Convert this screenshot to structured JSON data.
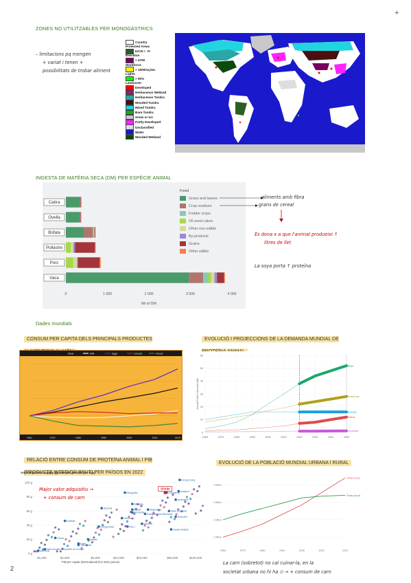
{
  "page": {
    "number": "2",
    "corner_mark": "+"
  },
  "section1": {
    "heading": "ZONES NO UTILITZABLES PER MONOGÀSTRICS",
    "notes": [
      "– limitacions pq mengen",
      "+ variat i tenen +",
      "possibilitats de trobar aliment"
    ],
    "legend": {
      "items": [
        {
          "label": "Country",
          "color": "#ffffff",
          "kind": "swatch"
        },
        {
          "label": "Protected Areas",
          "kind": "head"
        },
        {
          "label": "IUCN I - IV",
          "color": "#2a5e22",
          "kind": "swatch"
        },
        {
          "label": "Elevation",
          "kind": "head"
        },
        {
          "label": "> 4750",
          "color": "#7a0060",
          "kind": "swatch"
        },
        {
          "label": "Workforce",
          "kind": "head"
        },
        {
          "label": "> 1500/sq.km.",
          "color": "#f4f200",
          "kind": "swatch"
        },
        {
          "label": "Lights",
          "kind": "head"
        },
        {
          "label": "> 90%",
          "color": "#00ff00",
          "kind": "swatch"
        },
        {
          "label": "Landcover",
          "kind": "head"
        },
        {
          "label": "Developed",
          "color": "#ff0000",
          "kind": "swatch"
        },
        {
          "label": "Herbaceous Wetland",
          "color": "#9c1a6a",
          "kind": "swatch"
        },
        {
          "label": "Herbaceous Tundra",
          "color": "#2aa6a6",
          "kind": "swatch"
        },
        {
          "label": "Wooded Tundra",
          "color": "#4a1010",
          "kind": "swatch"
        },
        {
          "label": "Mixed Tundra",
          "color": "#22d4e0",
          "kind": "swatch"
        },
        {
          "label": "Bare Tundra",
          "color": "#1aa81a",
          "kind": "swatch"
        },
        {
          "label": "Snow or Ice",
          "color": "#c8c8c8",
          "kind": "swatch"
        },
        {
          "label": "Partly Developed",
          "color": "#ff22ff",
          "kind": "swatch"
        },
        {
          "label": "Unclassified",
          "color": "#dddddd",
          "kind": "swatch"
        },
        {
          "label": "Water",
          "color": "#1a1acc",
          "kind": "swatch"
        },
        {
          "label": "Wooded Wetland",
          "color": "#0a4a0a",
          "kind": "swatch"
        }
      ]
    }
  },
  "section2": {
    "heading": "INGESTA DE MATÈRIA SECA (DM) PER ESPÈCIE ANIMAL",
    "feed_title": "Feed",
    "notes": {
      "arrow1": "aliments amb fibra",
      "arrow2": "grans de cereal",
      "red1": "Es dona x a que l'animal produeixi ↑",
      "red2": "litres de llet",
      "black": "La soya porta ↑ proteïna"
    }
  },
  "chart_data": [
    {
      "type": "bar",
      "orientation": "horizontal",
      "stacked": true,
      "categories": [
        "Cabra",
        "Ovella",
        "Búfala",
        "Pollastre",
        "Porc",
        "Vaca"
      ],
      "xlabel": "Mt of DM",
      "xlim": [
        0,
        4000
      ],
      "xticks": [
        "0",
        "1 000",
        "2 000",
        "3 000",
        "4 000"
      ],
      "legend_position": "right",
      "series": [
        {
          "name": "Grass and leaves",
          "color": "#4a9a6a",
          "values": [
            330,
            330,
            430,
            0,
            0,
            2960
          ]
        },
        {
          "name": "Crop residues",
          "color": "#b0766e",
          "values": [
            40,
            40,
            220,
            0,
            0,
            350
          ]
        },
        {
          "name": "Fodder crops",
          "color": "#8ccab0",
          "values": [
            10,
            0,
            20,
            0,
            0,
            120
          ]
        },
        {
          "name": "Oil seed cakes",
          "color": "#a8d84a",
          "values": [
            0,
            0,
            10,
            120,
            180,
            70
          ]
        },
        {
          "name": "Other non-edible",
          "color": "#d6da9a",
          "values": [
            0,
            0,
            10,
            60,
            90,
            80
          ]
        },
        {
          "name": "By-products",
          "color": "#9a8ad8",
          "values": [
            0,
            0,
            0,
            40,
            20,
            60
          ]
        },
        {
          "name": "Grains",
          "color": "#a4343c",
          "values": [
            0,
            0,
            20,
            480,
            520,
            170
          ]
        },
        {
          "name": "Other edible",
          "color": "#ff7a4a",
          "values": [
            0,
            0,
            0,
            20,
            30,
            20
          ]
        }
      ]
    },
    {
      "type": "line",
      "title": "CONSUM PER CAPITA DELS PRINCIPALS PRODUCTES ALIMENTICIS AL MÓN",
      "x": [
        1961,
        1970,
        1980,
        1990,
        2000,
        2010,
        2019
      ],
      "series": [
        {
          "name": "Meat",
          "color": "#111111",
          "values": [
            100,
            110,
            125,
            140,
            152,
            165,
            180
          ]
        },
        {
          "name": "Milk",
          "color": "#f0f0f0",
          "values": [
            100,
            96,
            94,
            95,
            100,
            105,
            115
          ]
        },
        {
          "name": "Eggs",
          "color": "#5a2ad0",
          "values": [
            100,
            115,
            140,
            160,
            185,
            205,
            235
          ]
        },
        {
          "name": "Cereals",
          "color": "#e01a1a",
          "values": [
            100,
            108,
            112,
            110,
            106,
            108,
            108
          ]
        },
        {
          "name": "Pulses",
          "color": "#3a8a3a",
          "values": [
            100,
            85,
            72,
            70,
            68,
            72,
            78
          ]
        }
      ]
    },
    {
      "type": "area",
      "title": "EVOLUCIÓ I PROJECCIONS DE LA DEMANDA MUNDIAL DE PROTEÏNA ANIMAL",
      "ylabel": "Animal Protein Demand (Mt)",
      "x": [
        1960,
        1970,
        1980,
        1990,
        2000,
        2010,
        2020,
        2030,
        2040,
        2050
      ],
      "series": [
        {
          "name": "Asia",
          "color": "#1aa86a",
          "values": [
            3,
            5,
            8,
            14,
            22,
            30,
            38,
            44,
            48,
            52
          ]
        },
        {
          "name": "Americas",
          "color": "#b0a01a",
          "values": [
            8,
            10,
            12,
            14,
            17,
            19,
            22,
            24,
            26,
            28
          ]
        },
        {
          "name": "Europe",
          "color": "#1aa0e0",
          "values": [
            10,
            12,
            14,
            16,
            16,
            16,
            16,
            16,
            16,
            16
          ]
        },
        {
          "name": "Africa",
          "color": "#e04a4a",
          "values": [
            1,
            2,
            2,
            3,
            4,
            5,
            7,
            8,
            10,
            12
          ]
        },
        {
          "name": "Oceania",
          "color": "#c85ad8",
          "values": [
            0.5,
            0.5,
            0.6,
            0.7,
            0.8,
            0.9,
            1,
            1,
            1.1,
            1.2
          ]
        }
      ]
    },
    {
      "type": "scatter",
      "title": "RELACIÓ ENTRE CONSUM DE PROTEÏNA ANIMAL I PIB (PRODUCTE INTERIOR BRUT) PER PAÏSOS EN 2022",
      "subtitle": "Animal protein supply (grams per person per day)",
      "xlabel": "PIB per capita (International $ in 2021 prices)",
      "xscale": "log",
      "xticks": [
        "$1,000",
        "$2,000",
        "$5,000",
        "$10,000",
        "$20,000",
        "$50,000",
        "$100,000"
      ],
      "yticks": [
        "0 g",
        "20 g",
        "40 g",
        "60 g",
        "80 g",
        "100 g"
      ],
      "points": [
        {
          "label": "Hong Kong",
          "x": 62000,
          "y": 104
        },
        {
          "label": "Mongolia",
          "x": 12000,
          "y": 86
        },
        {
          "label": "Lithuania",
          "x": 42000,
          "y": 86
        },
        {
          "label": "Iceland",
          "x": 60000,
          "y": 88
        },
        {
          "label": "SPAIN",
          "x": 40000,
          "y": 86
        },
        {
          "label": "Australia",
          "x": 55000,
          "y": 76
        },
        {
          "label": "Albania",
          "x": 15000,
          "y": 70
        },
        {
          "label": "Samoa",
          "x": 6000,
          "y": 64
        },
        {
          "label": "Brazil",
          "x": 15000,
          "y": 62
        },
        {
          "label": "Argentina",
          "x": 24000,
          "y": 62
        },
        {
          "label": "Antigua and Barbuda",
          "x": 22000,
          "y": 56
        },
        {
          "label": "Armenia",
          "x": 15000,
          "y": 58
        },
        {
          "label": "New Zealand",
          "x": 45000,
          "y": 60
        },
        {
          "label": "Vietnam",
          "x": 11000,
          "y": 50
        },
        {
          "label": "Kyrgyzstan",
          "x": 5500,
          "y": 38
        },
        {
          "label": "Sweden",
          "x": 55000,
          "y": 52
        },
        {
          "label": "Saudi Arabia",
          "x": 48000,
          "y": 34
        },
        {
          "label": "Kiribati",
          "x": 2000,
          "y": 46
        },
        {
          "label": "Nepal",
          "x": 4000,
          "y": 20
        },
        {
          "label": "Mexico",
          "x": 20000,
          "y": 42
        },
        {
          "label": "Peru",
          "x": 13000,
          "y": 38
        },
        {
          "label": "Chad",
          "x": 1500,
          "y": 22
        },
        {
          "label": "Haiti",
          "x": 3000,
          "y": 14
        },
        {
          "label": "Tanzania",
          "x": 3000,
          "y": 12
        },
        {
          "label": "Burundi",
          "x": 900,
          "y": 4
        },
        {
          "label": "Democratic Republic of Congo",
          "x": 1100,
          "y": 6
        }
      ]
    },
    {
      "type": "line",
      "title": "EVOLUCIÓ DE LA POBLACIÓ MUNDIAL URBANA I RURAL",
      "x": [
        1960,
        1970,
        1980,
        1990,
        2000,
        2010,
        2022
      ],
      "yticks": [
        "1 billion",
        "2 billion",
        "3 billion",
        "4 billion"
      ],
      "series": [
        {
          "name": "Urban population",
          "color": "#e05a5a",
          "values": [
            1.0,
            1.35,
            1.75,
            2.3,
            2.85,
            3.55,
            4.4
          ]
        },
        {
          "name": "Rural population",
          "color": "#2a9a4a",
          "values": [
            2.0,
            2.35,
            2.65,
            2.95,
            3.25,
            3.35,
            3.4
          ]
        }
      ]
    }
  ],
  "section3": {
    "heading": "Dades mundials",
    "chart1_title": "CONSUM PER CAPITA DELS PRINCIPALS PRODUCTES ALIMENTICIS AL MÓN",
    "chart2_title": "EVOLUCIÓ I PROJECCIONS DE LA DEMANDA MUNDIAL DE PROTEÏNA ANIMAL",
    "chart3_title": "RELACIÓ ENTRE CONSUM DE PROTEÏNA ANIMAL I PIB (PRODUCTE INTERIOR BRUT) PER PAÏSOS EN 2022",
    "chart4_title": "EVOLUCIÓ DE LA POBLACIÓ MUNDIAL URBANA I RURAL",
    "scatter_notes": [
      "Major valor adquisitiu →",
      "+ consum de carn"
    ],
    "bottom_notes": [
      "La carn (sobretot) no cal cuinar-la, en la",
      "societat urbana no hi ha ⏲ → + consum de carn"
    ]
  }
}
